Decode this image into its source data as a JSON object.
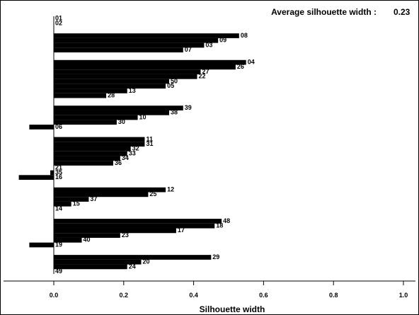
{
  "chart_data": {
    "type": "bar",
    "orientation": "horizontal",
    "title": "",
    "xlabel": "Silhouette width",
    "ylabel": "",
    "annotation": {
      "label": "Average silhouette width :",
      "value": "0.23"
    },
    "xlim": [
      0.0,
      1.0
    ],
    "xticks": [
      "0.0",
      "0.2",
      "0.4",
      "0.6",
      "0.8",
      "1.0"
    ],
    "grid": false,
    "legend": "none",
    "clusters": [
      {
        "cluster": 1,
        "bars": [
          {
            "label": "01",
            "value": 0.0
          },
          {
            "label": "02",
            "value": 0.0
          }
        ]
      },
      {
        "cluster": 2,
        "bars": [
          {
            "label": "08",
            "value": 0.53
          },
          {
            "label": "09",
            "value": 0.47
          },
          {
            "label": "03",
            "value": 0.43
          },
          {
            "label": "07",
            "value": 0.37
          }
        ]
      },
      {
        "cluster": 3,
        "bars": [
          {
            "label": "04",
            "value": 0.55
          },
          {
            "label": "26",
            "value": 0.52
          },
          {
            "label": "27",
            "value": 0.42
          },
          {
            "label": "22",
            "value": 0.41
          },
          {
            "label": "50",
            "value": 0.33
          },
          {
            "label": "05",
            "value": 0.32
          },
          {
            "label": "13",
            "value": 0.21
          },
          {
            "label": "28",
            "value": 0.15
          }
        ]
      },
      {
        "cluster": 4,
        "bars": [
          {
            "label": "39",
            "value": 0.37
          },
          {
            "label": "38",
            "value": 0.33
          },
          {
            "label": "10",
            "value": 0.24
          },
          {
            "label": "30",
            "value": 0.18
          },
          {
            "label": "06",
            "value": -0.07
          }
        ]
      },
      {
        "cluster": 5,
        "bars": [
          {
            "label": "11",
            "value": 0.26
          },
          {
            "label": "31",
            "value": 0.26
          },
          {
            "label": "32",
            "value": 0.22
          },
          {
            "label": "33",
            "value": 0.21
          },
          {
            "label": "34",
            "value": 0.19
          },
          {
            "label": "36",
            "value": 0.17
          },
          {
            "label": "21",
            "value": 0.0
          },
          {
            "label": "35",
            "value": -0.01
          },
          {
            "label": "16",
            "value": -0.1
          }
        ]
      },
      {
        "cluster": 6,
        "bars": [
          {
            "label": "12",
            "value": 0.32
          },
          {
            "label": "25",
            "value": 0.27
          },
          {
            "label": "37",
            "value": 0.1
          },
          {
            "label": "15",
            "value": 0.05
          },
          {
            "label": "14",
            "value": 0.0
          }
        ]
      },
      {
        "cluster": 7,
        "bars": [
          {
            "label": "48",
            "value": 0.48
          },
          {
            "label": "18",
            "value": 0.46
          },
          {
            "label": "17",
            "value": 0.35
          },
          {
            "label": "23",
            "value": 0.19
          },
          {
            "label": "40",
            "value": 0.08
          },
          {
            "label": "19",
            "value": -0.07
          }
        ]
      },
      {
        "cluster": 8,
        "bars": [
          {
            "label": "29",
            "value": 0.45
          },
          {
            "label": "20",
            "value": 0.25
          },
          {
            "label": "24",
            "value": 0.21
          },
          {
            "label": "49",
            "value": 0.0
          }
        ]
      }
    ]
  }
}
